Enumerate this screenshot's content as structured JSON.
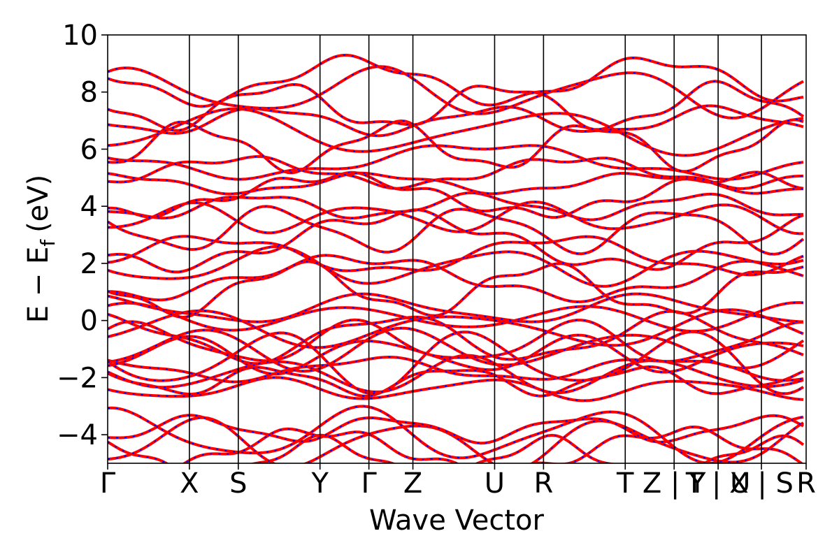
{
  "chart_data": {
    "type": "line",
    "title": "",
    "xlabel": "Wave Vector",
    "ylabel": "E − E",
    "ylabel_sub": "f",
    "ylabel_unit": "(eV)",
    "ylim": [
      -5,
      10
    ],
    "xlim": [
      0,
      1000
    ],
    "yticks": [
      {
        "value": 10,
        "label": "10"
      },
      {
        "value": 8,
        "label": "8"
      },
      {
        "value": 6,
        "label": "6"
      },
      {
        "value": 4,
        "label": "4"
      },
      {
        "value": 2,
        "label": "2"
      },
      {
        "value": 0,
        "label": "0"
      },
      {
        "value": -2,
        "label": "−2"
      },
      {
        "value": -4,
        "label": "−4"
      }
    ],
    "xticks": [
      {
        "pos": 0,
        "label": "Γ"
      },
      {
        "pos": 117,
        "label": "X"
      },
      {
        "pos": 187,
        "label": "S"
      },
      {
        "pos": 304,
        "label": "Y"
      },
      {
        "pos": 374,
        "label": "Γ"
      },
      {
        "pos": 437,
        "label": "Z"
      },
      {
        "pos": 554,
        "label": "U"
      },
      {
        "pos": 624,
        "label": "R"
      },
      {
        "pos": 741,
        "label": "T"
      },
      {
        "pos": 811,
        "label": "Z | Y"
      },
      {
        "pos": 874,
        "label": "T | U"
      },
      {
        "pos": 936,
        "label": "X | S"
      },
      {
        "pos": 1000,
        "label": "R"
      }
    ],
    "segment_breaks": [
      0,
      117,
      187,
      304,
      374,
      437,
      554,
      624,
      741,
      811,
      874,
      936,
      1000
    ],
    "grid": false,
    "series": [
      {
        "color": "#ff0000",
        "style": "solid"
      },
      {
        "color": "#0000ff",
        "style": "dotted"
      }
    ]
  }
}
